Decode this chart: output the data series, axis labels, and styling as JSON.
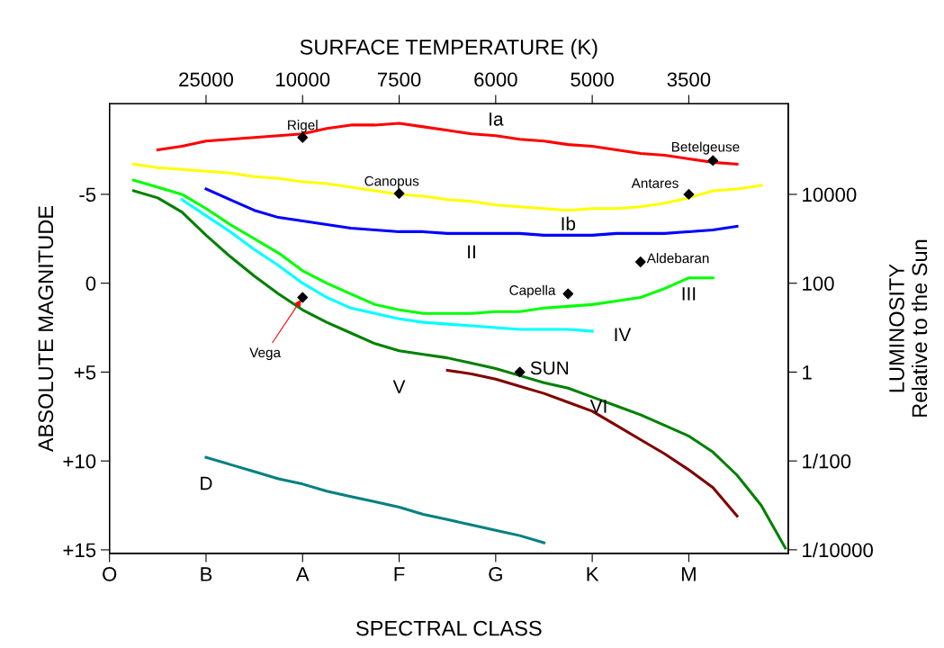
{
  "chart_data": {
    "type": "line",
    "xlabel": "SPECTRAL CLASS",
    "ylabel": "ABSOLUTE MAGNITUDE",
    "y2label": "LUMINOSITY\nRelative to the Sun",
    "x2label": "SURFACE TEMPERATURE (K)",
    "categories": [
      "O",
      null,
      null,
      null,
      "B",
      null,
      null,
      null,
      "A",
      null,
      null,
      null,
      "F",
      null,
      null,
      null,
      "G",
      null,
      null,
      null,
      "K",
      null,
      null,
      null,
      "M",
      null,
      null,
      null,
      null
    ],
    "ylim": [
      15.2,
      -10.1
    ],
    "yticks": [
      {
        "value": -5,
        "label": "-5"
      },
      0,
      {
        "value": 5,
        "label": "+5"
      },
      {
        "value": 10,
        "label": "+10"
      },
      {
        "value": 15,
        "label": "+15"
      }
    ],
    "y2lim": [
      8.3e-05,
      1100000
    ],
    "y2ticks": [
      10000,
      100,
      1,
      {
        "value": 0.01,
        "label": "1/100"
      },
      {
        "value": 0.0001,
        "label": "1/10000"
      }
    ],
    "log": "y2",
    "grid": false,
    "legend": false,
    "marker": "none",
    "line_style": "solid",
    "series": [
      {
        "name": "Ia",
        "color": "#ff0000",
        "values": [
          null,
          null,
          -7.5,
          -7.7,
          -8.0,
          -8.1,
          -8.2,
          -8.3,
          -8.4,
          -8.7,
          -8.9,
          -8.9,
          -9.0,
          -8.8,
          -8.6,
          -8.4,
          -8.3,
          -8.1,
          -8.0,
          -7.8,
          -7.7,
          -7.5,
          -7.3,
          -7.2,
          -7.0,
          -6.8,
          -6.7,
          null,
          null
        ]
      },
      {
        "name": "Ib",
        "color": "#ffff00",
        "values": [
          null,
          -6.7,
          -6.5,
          -6.4,
          -6.3,
          -6.2,
          -6.0,
          -5.9,
          -5.7,
          -5.6,
          -5.4,
          -5.2,
          -5.0,
          -4.9,
          -4.7,
          -4.6,
          -4.4,
          -4.3,
          -4.2,
          -4.1,
          -4.2,
          -4.2,
          -4.3,
          -4.5,
          -4.8,
          -5.2,
          -5.3,
          -5.5,
          null
        ]
      },
      {
        "name": "II",
        "color": "#0000ff",
        "values": [
          null,
          null,
          null,
          null,
          -5.3,
          -4.7,
          -4.1,
          -3.7,
          -3.5,
          -3.3,
          -3.1,
          -3.0,
          -2.9,
          -2.9,
          -2.8,
          -2.8,
          -2.8,
          -2.8,
          -2.7,
          -2.7,
          -2.7,
          -2.8,
          -2.8,
          -2.8,
          -2.9,
          -3.0,
          -3.2,
          null,
          null
        ]
      },
      {
        "name": "III",
        "color": "#00ff00",
        "values": [
          null,
          -5.8,
          -5.4,
          -5.0,
          -4.2,
          -3.3,
          -2.5,
          -1.7,
          -0.7,
          0.0,
          0.6,
          1.2,
          1.5,
          1.7,
          1.7,
          1.7,
          1.6,
          1.6,
          1.4,
          1.3,
          1.2,
          1.0,
          0.8,
          0.3,
          -0.3,
          -0.3,
          null,
          null,
          null
        ]
      },
      {
        "name": "IV",
        "color": "#00ffff",
        "values": [
          null,
          null,
          null,
          -4.7,
          -3.8,
          -2.9,
          -1.9,
          -1.0,
          0.0,
          0.8,
          1.4,
          1.7,
          2.0,
          2.2,
          2.3,
          2.4,
          2.5,
          2.6,
          2.6,
          2.6,
          2.7,
          null,
          null,
          null,
          null,
          null,
          null,
          null,
          null
        ]
      },
      {
        "name": "V",
        "color": "#008000",
        "values": [
          null,
          -5.2,
          -4.8,
          -4.0,
          -2.7,
          -1.5,
          -0.4,
          0.6,
          1.5,
          2.2,
          2.8,
          3.4,
          3.8,
          4.0,
          4.2,
          4.5,
          4.8,
          5.2,
          5.6,
          5.9,
          6.4,
          6.9,
          7.4,
          8.0,
          8.6,
          9.5,
          10.8,
          12.5,
          14.9
        ]
      },
      {
        "name": "VI",
        "color": "#800000",
        "values": [
          null,
          null,
          null,
          null,
          null,
          null,
          null,
          null,
          null,
          null,
          null,
          null,
          null,
          null,
          4.9,
          5.1,
          5.4,
          5.8,
          6.2,
          6.7,
          7.2,
          8.0,
          8.8,
          9.6,
          10.5,
          11.5,
          13.1,
          null,
          null
        ]
      },
      {
        "name": "D",
        "color": "#008080",
        "values": [
          null,
          null,
          null,
          null,
          9.8,
          10.2,
          10.6,
          11.0,
          11.3,
          11.7,
          12.0,
          12.3,
          12.6,
          13.0,
          13.3,
          13.6,
          13.9,
          14.2,
          14.6,
          null,
          null,
          null,
          null,
          null,
          null,
          null,
          null,
          null,
          null
        ]
      },
      {
        "type": "scatter",
        "marker": "diamond",
        "color": "#000000",
        "values": [
          null,
          null,
          null,
          null,
          null,
          null,
          null,
          null,
          -8.2,
          null,
          null,
          null,
          -5.05,
          null,
          null,
          null,
          null,
          5.0,
          null,
          0.6,
          null,
          null,
          -1.2,
          null,
          -5.0,
          -6.9,
          null,
          null,
          null
        ],
        "value_labels": [
          null,
          null,
          null,
          null,
          null,
          null,
          null,
          null,
          "Rigel",
          null,
          null,
          null,
          "Canopus",
          null,
          null,
          null,
          null,
          "SUN",
          null,
          "Capella",
          null,
          null,
          "Aldebaran",
          null,
          "Antares",
          "Betelgeuse",
          null,
          null,
          null
        ]
      },
      {
        "type": "scatter",
        "marker": "diamond",
        "color": "#000000",
        "values": [
          null,
          null,
          null,
          null,
          null,
          null,
          null,
          null,
          0.8,
          null,
          null,
          null,
          null,
          null,
          null,
          null,
          null,
          null,
          null,
          null,
          null,
          null,
          null,
          null,
          null,
          null,
          null,
          null,
          null
        ],
        "value_labels": [
          null,
          null,
          null,
          null,
          null,
          null,
          null,
          null,
          "Vega",
          null,
          null,
          null,
          null,
          null,
          null,
          null,
          null,
          null,
          null,
          null,
          null,
          null,
          null,
          null,
          null,
          null,
          null,
          null,
          null
        ]
      }
    ],
    "annotations": [
      "25000",
      "10000",
      "7500",
      "6000",
      "5000",
      "3500"
    ]
  }
}
